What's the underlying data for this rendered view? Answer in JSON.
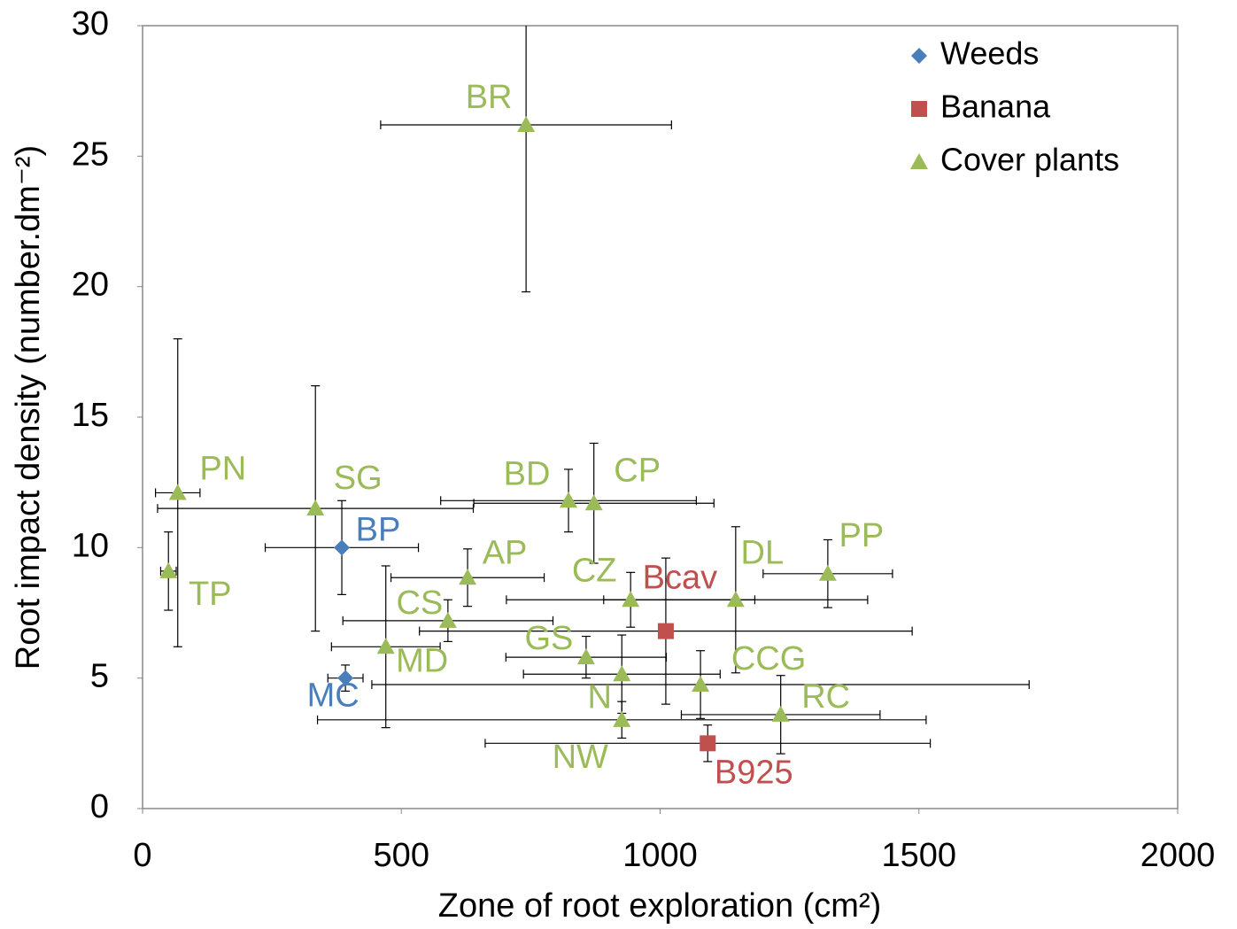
{
  "chart_data": {
    "type": "scatter",
    "x_label": "Zone of root exploration (cm²)",
    "y_label": "Root impact density (number.dm⁻²)",
    "xlim": [
      0,
      2000
    ],
    "xticks": [
      0,
      500,
      1000,
      1500,
      2000
    ],
    "ylim": [
      0,
      30
    ],
    "yticks": [
      0,
      5,
      10,
      15,
      20,
      25,
      30
    ],
    "legend": "upper right",
    "series": [
      {
        "name": "Weeds",
        "color": "#4a7ebb",
        "marker": "diamond",
        "labels": [
          "BP",
          "MC"
        ],
        "x": [
          385,
          392
        ],
        "values": [
          10.0,
          5.0
        ],
        "x_err": [
          148,
          34
        ],
        "y_err": [
          1.8,
          0.5
        ]
      },
      {
        "name": "Banana",
        "color": "#c0504d",
        "marker": "square",
        "labels": [
          "Bcav",
          "B925"
        ],
        "x": [
          1011,
          1092
        ],
        "values": [
          6.8,
          2.5
        ],
        "x_err": [
          476,
          430
        ],
        "y_err": [
          2.8,
          0.7
        ]
      },
      {
        "name": "Cover plants",
        "color": "#9bbb59",
        "marker": "triangle",
        "labels": [
          "BR",
          "PN",
          "TP",
          "SG",
          "BD",
          "CP",
          "AP",
          "CS",
          "MD",
          "CZ",
          "GS",
          "N",
          "CCG",
          "DL",
          "PP",
          "RC",
          "NW"
        ],
        "x": [
          741,
          68,
          50,
          334,
          823,
          872,
          628,
          590,
          470,
          943,
          857,
          926,
          1078,
          1146,
          1324,
          1233,
          926
        ],
        "values": [
          26.2,
          12.1,
          9.1,
          11.5,
          11.8,
          11.7,
          8.85,
          7.2,
          6.2,
          8.0,
          5.8,
          5.15,
          4.75,
          8.0,
          9.0,
          3.6,
          3.4
        ],
        "x_err": [
          281,
          43,
          15,
          305,
          247,
          232,
          148,
          203,
          105,
          240,
          155,
          190,
          635,
          255,
          125,
          192,
          588
        ],
        "y_err": [
          6.4,
          5.9,
          1.5,
          4.7,
          1.2,
          2.3,
          1.1,
          0.8,
          3.1,
          1.05,
          0.8,
          1.5,
          1.3,
          2.8,
          1.3,
          1.5,
          0.7
        ]
      }
    ]
  }
}
